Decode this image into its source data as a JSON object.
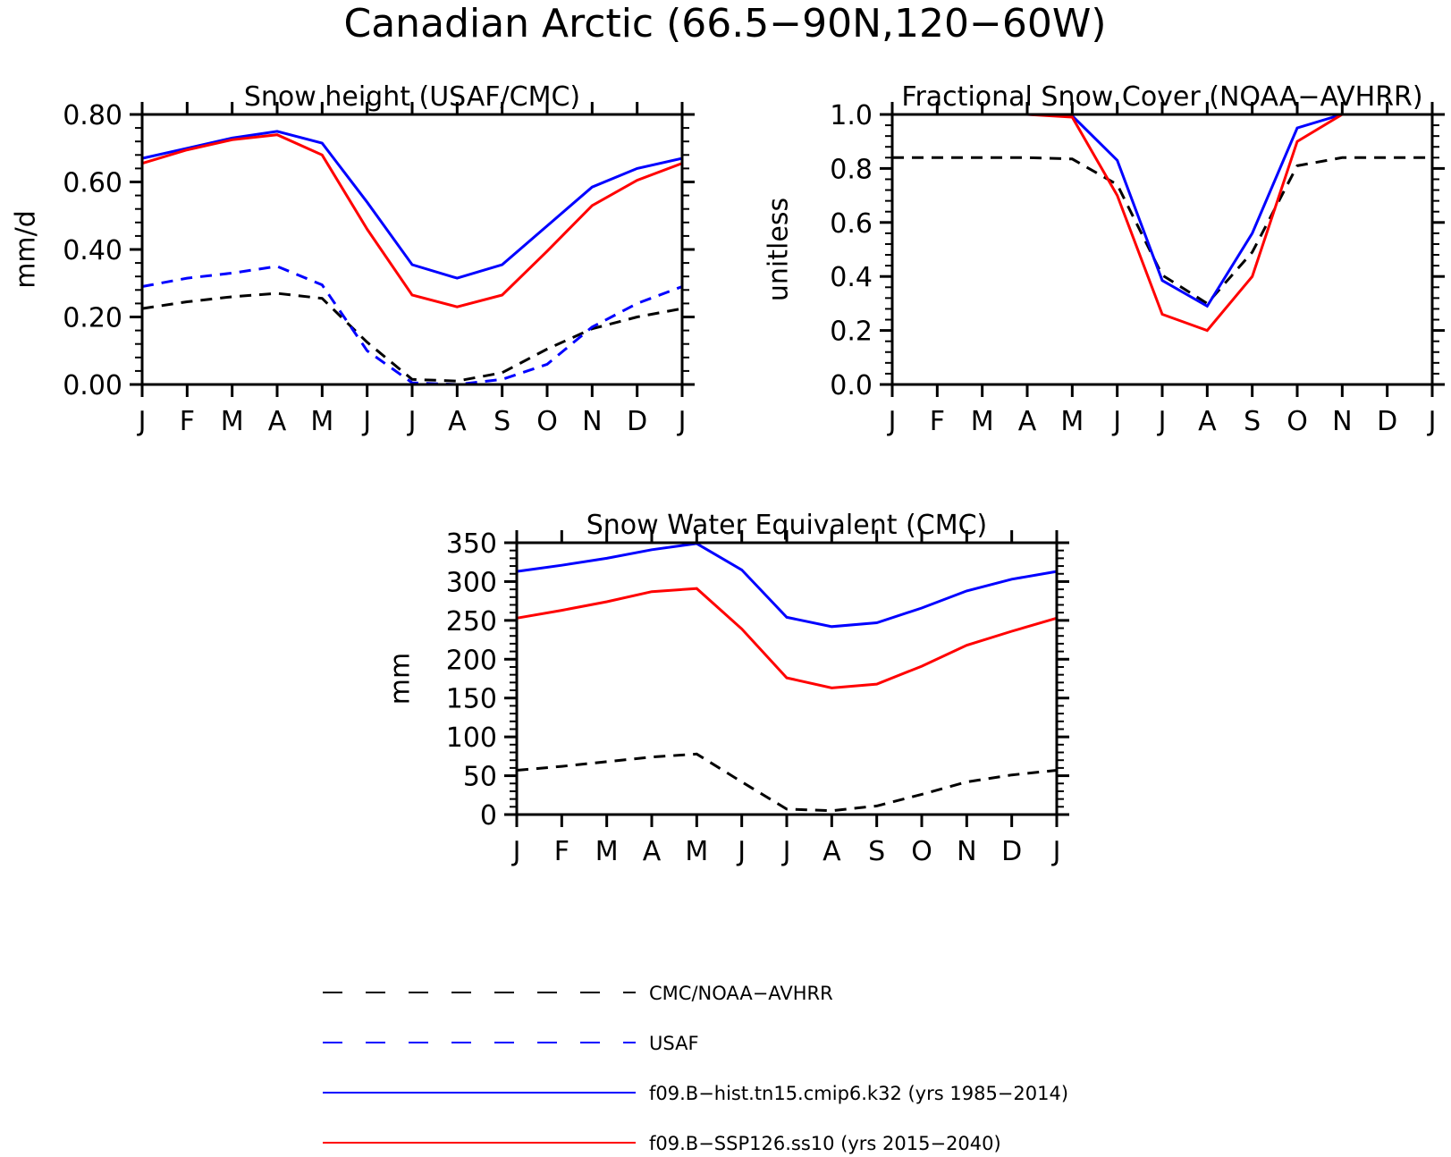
{
  "title": "Canadian Arctic (66.5−90N,120−60W)",
  "months": [
    "J",
    "F",
    "M",
    "A",
    "M",
    "J",
    "J",
    "A",
    "S",
    "O",
    "N",
    "D",
    "J"
  ],
  "legend": [
    {
      "label": "CMC/NOAA−AVHRR",
      "color": "#000000",
      "style": "dashed"
    },
    {
      "label": "USAF",
      "color": "#0000ff",
      "style": "dashed"
    },
    {
      "label": "f09.B−hist.tn15.cmip6.k32 (yrs 1985−2014)",
      "color": "#0000ff",
      "style": "solid"
    },
    {
      "label": "f09.B−SSP126.ss10 (yrs 2015−2040)",
      "color": "#ff0000",
      "style": "solid"
    }
  ],
  "chart_data": [
    {
      "type": "line",
      "title": "Snow height (USAF/CMC)",
      "ylabel": "mm/d",
      "xlabel": "",
      "ylim": [
        0,
        0.8
      ],
      "yticks": [
        "0.00",
        "0.20",
        "0.40",
        "0.60",
        "0.80"
      ],
      "categories": [
        "J",
        "F",
        "M",
        "A",
        "M",
        "J",
        "J",
        "A",
        "S",
        "O",
        "N",
        "D",
        "J"
      ],
      "series": [
        {
          "name": "CMC/NOAA−AVHRR",
          "color": "#000000",
          "style": "dashed",
          "values": [
            0.225,
            0.245,
            0.26,
            0.27,
            0.255,
            0.125,
            0.015,
            0.01,
            0.035,
            0.105,
            0.165,
            0.2,
            0.225
          ]
        },
        {
          "name": "USAF",
          "color": "#0000ff",
          "style": "dashed",
          "values": [
            0.29,
            0.315,
            0.33,
            0.35,
            0.295,
            0.1,
            0.005,
            0.0,
            0.015,
            0.06,
            0.17,
            0.24,
            0.29
          ]
        },
        {
          "name": "f09.B−hist.tn15.cmip6.k32 (yrs 1985−2014)",
          "color": "#0000ff",
          "style": "solid",
          "values": [
            0.67,
            0.7,
            0.73,
            0.75,
            0.715,
            0.54,
            0.355,
            0.315,
            0.355,
            0.47,
            0.585,
            0.64,
            0.67
          ]
        },
        {
          "name": "f09.B−SSP126.ss10 (yrs 2015−2040)",
          "color": "#ff0000",
          "style": "solid",
          "values": [
            0.655,
            0.695,
            0.725,
            0.74,
            0.68,
            0.46,
            0.265,
            0.23,
            0.265,
            0.395,
            0.53,
            0.605,
            0.655
          ]
        }
      ]
    },
    {
      "type": "line",
      "title": "Fractional Snow Cover (NOAA−AVHRR)",
      "ylabel": "unitless",
      "xlabel": "",
      "ylim": [
        0,
        1.0
      ],
      "yticks": [
        "0.0",
        "0.2",
        "0.4",
        "0.6",
        "0.8",
        "1.0"
      ],
      "categories": [
        "J",
        "F",
        "M",
        "A",
        "M",
        "J",
        "J",
        "A",
        "S",
        "O",
        "N",
        "D",
        "J"
      ],
      "series": [
        {
          "name": "CMC/NOAA−AVHRR",
          "color": "#000000",
          "style": "dashed",
          "values": [
            0.84,
            0.84,
            0.84,
            0.84,
            0.835,
            0.74,
            0.405,
            0.3,
            0.49,
            0.81,
            0.84,
            0.84,
            0.84
          ]
        },
        {
          "name": "f09.B−hist.tn15.cmip6.k32 (yrs 1985−2014)",
          "color": "#0000ff",
          "style": "solid",
          "values": [
            1.0,
            1.0,
            1.0,
            1.0,
            0.995,
            0.83,
            0.385,
            0.29,
            0.56,
            0.95,
            1.0,
            1.0,
            1.0
          ]
        },
        {
          "name": "f09.B−SSP126.ss10 (yrs 2015−2040)",
          "color": "#ff0000",
          "style": "solid",
          "values": [
            1.0,
            1.0,
            1.0,
            1.0,
            0.99,
            0.7,
            0.26,
            0.2,
            0.4,
            0.9,
            1.0,
            1.0,
            1.0
          ]
        }
      ]
    },
    {
      "type": "line",
      "title": "Snow Water Equivalent (CMC)",
      "ylabel": "mm",
      "xlabel": "",
      "ylim": [
        0,
        350
      ],
      "yticks": [
        "0",
        "50",
        "100",
        "150",
        "200",
        "250",
        "300",
        "350"
      ],
      "categories": [
        "J",
        "F",
        "M",
        "A",
        "M",
        "J",
        "J",
        "A",
        "S",
        "O",
        "N",
        "D",
        "J"
      ],
      "series": [
        {
          "name": "CMC/NOAA−AVHRR",
          "color": "#000000",
          "style": "dashed",
          "values": [
            57,
            62,
            68,
            74,
            78,
            42,
            7,
            5,
            11,
            26,
            42,
            51,
            57
          ]
        },
        {
          "name": "f09.B−hist.tn15.cmip6.k32 (yrs 1985−2014)",
          "color": "#0000ff",
          "style": "solid",
          "values": [
            313,
            321,
            330,
            341,
            349,
            315,
            254,
            242,
            247,
            266,
            288,
            303,
            313
          ]
        },
        {
          "name": "f09.B−SSP126.ss10 (yrs 2015−2040)",
          "color": "#ff0000",
          "style": "solid",
          "values": [
            253,
            263,
            274,
            287,
            291,
            239,
            176,
            163,
            168,
            191,
            218,
            236,
            253
          ]
        }
      ]
    }
  ]
}
